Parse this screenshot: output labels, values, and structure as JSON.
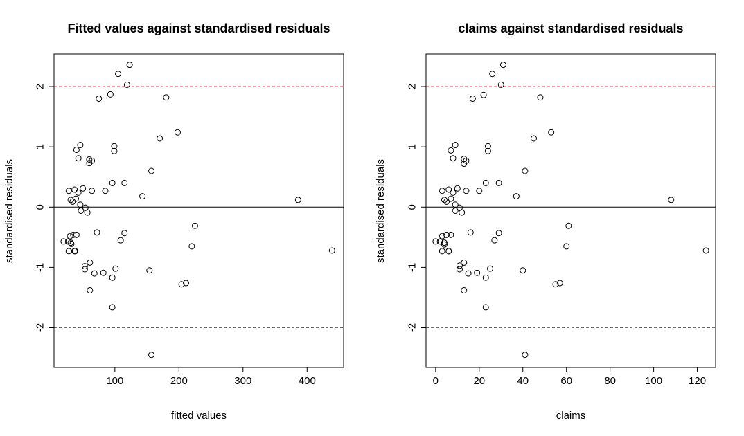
{
  "chart_data": [
    {
      "type": "scatter",
      "title": "Fitted values against standardised residuals",
      "xlabel": "fitted values",
      "ylabel": "standardised residuals",
      "xlim": [
        5,
        457
      ],
      "ylim": [
        -2.66,
        2.54
      ],
      "xticks": [
        100,
        200,
        300,
        400
      ],
      "yticks": [
        -2,
        -1,
        0,
        1,
        2
      ],
      "hlines": [
        {
          "y": 2,
          "color": "#e8313b",
          "style": "dashed"
        },
        {
          "y": 0,
          "color": "#000000",
          "style": "solid"
        },
        {
          "y": -2,
          "color": "#e8313b",
          "style": "dashed"
        }
      ],
      "points": [
        {
          "x": 20,
          "y": -0.57
        },
        {
          "x": 27,
          "y": -0.57
        },
        {
          "x": 28,
          "y": 0.27
        },
        {
          "x": 28,
          "y": -0.73
        },
        {
          "x": 30,
          "y": -0.48
        },
        {
          "x": 31,
          "y": 0.12
        },
        {
          "x": 31,
          "y": -0.59
        },
        {
          "x": 32,
          "y": -0.61
        },
        {
          "x": 34,
          "y": 0.09
        },
        {
          "x": 35,
          "y": -0.46
        },
        {
          "x": 37,
          "y": 0.29
        },
        {
          "x": 37,
          "y": -0.73
        },
        {
          "x": 38,
          "y": -0.73
        },
        {
          "x": 39,
          "y": 0.14
        },
        {
          "x": 40,
          "y": 0.95
        },
        {
          "x": 40,
          "y": -0.46
        },
        {
          "x": 43,
          "y": 0.81
        },
        {
          "x": 43,
          "y": 0.24
        },
        {
          "x": 46,
          "y": 1.03
        },
        {
          "x": 46,
          "y": 0.04
        },
        {
          "x": 47,
          "y": -0.06
        },
        {
          "x": 50,
          "y": 0.31
        },
        {
          "x": 53,
          "y": -0.98
        },
        {
          "x": 53,
          "y": -1.03
        },
        {
          "x": 54,
          "y": -0.01
        },
        {
          "x": 57,
          "y": -0.09
        },
        {
          "x": 60,
          "y": 0.79
        },
        {
          "x": 60,
          "y": 0.73
        },
        {
          "x": 61,
          "y": -0.92
        },
        {
          "x": 61,
          "y": -1.38
        },
        {
          "x": 64,
          "y": 0.77
        },
        {
          "x": 64,
          "y": 0.27
        },
        {
          "x": 68,
          "y": -1.1
        },
        {
          "x": 72,
          "y": -0.42
        },
        {
          "x": 75,
          "y": 1.8
        },
        {
          "x": 82,
          "y": -1.09
        },
        {
          "x": 85,
          "y": 0.27
        },
        {
          "x": 93,
          "y": 1.87
        },
        {
          "x": 96,
          "y": 0.4
        },
        {
          "x": 96,
          "y": -1.17
        },
        {
          "x": 96,
          "y": -1.66
        },
        {
          "x": 99,
          "y": 1.01
        },
        {
          "x": 99,
          "y": 0.93
        },
        {
          "x": 101,
          "y": -1.02
        },
        {
          "x": 105,
          "y": 2.21
        },
        {
          "x": 109,
          "y": -0.55
        },
        {
          "x": 115,
          "y": 0.4
        },
        {
          "x": 115,
          "y": -0.43
        },
        {
          "x": 119,
          "y": 2.03
        },
        {
          "x": 123,
          "y": 2.36
        },
        {
          "x": 143,
          "y": 0.18
        },
        {
          "x": 154,
          "y": -1.05
        },
        {
          "x": 157,
          "y": 0.6
        },
        {
          "x": 157,
          "y": -2.45
        },
        {
          "x": 170,
          "y": 1.14
        },
        {
          "x": 180,
          "y": 1.82
        },
        {
          "x": 198,
          "y": 1.24
        },
        {
          "x": 204,
          "y": -1.28
        },
        {
          "x": 211,
          "y": -1.26
        },
        {
          "x": 220,
          "y": -0.65
        },
        {
          "x": 225,
          "y": -0.31
        },
        {
          "x": 386,
          "y": 0.12
        },
        {
          "x": 439,
          "y": -0.72
        }
      ]
    },
    {
      "type": "scatter",
      "title": "claims against standardised residuals",
      "xlabel": "claims",
      "ylabel": "standardised residuals",
      "xlim": [
        -4.4,
        128.4
      ],
      "ylim": [
        -2.66,
        2.54
      ],
      "xticks": [
        0,
        20,
        40,
        60,
        80,
        100,
        120
      ],
      "yticks": [
        -2,
        -1,
        0,
        1,
        2
      ],
      "hlines": [
        {
          "y": 2,
          "color": "#e8313b",
          "style": "dashed"
        },
        {
          "y": 0,
          "color": "#000000",
          "style": "solid"
        },
        {
          "y": -2,
          "color": "#e8313b",
          "style": "dashed"
        }
      ],
      "points": [
        {
          "x": 0,
          "y": -0.57
        },
        {
          "x": 2,
          "y": -0.57
        },
        {
          "x": 3,
          "y": 0.27
        },
        {
          "x": 3,
          "y": -0.73
        },
        {
          "x": 3,
          "y": -0.48
        },
        {
          "x": 4,
          "y": 0.12
        },
        {
          "x": 4,
          "y": -0.59
        },
        {
          "x": 4,
          "y": -0.62
        },
        {
          "x": 5,
          "y": 0.09
        },
        {
          "x": 5,
          "y": -0.46
        },
        {
          "x": 6,
          "y": 0.29
        },
        {
          "x": 6,
          "y": -0.73
        },
        {
          "x": 6,
          "y": -0.73
        },
        {
          "x": 7,
          "y": 0.14
        },
        {
          "x": 7,
          "y": 0.94
        },
        {
          "x": 7,
          "y": -0.46
        },
        {
          "x": 8,
          "y": 0.81
        },
        {
          "x": 8,
          "y": 0.24
        },
        {
          "x": 9,
          "y": 1.03
        },
        {
          "x": 9,
          "y": 0.04
        },
        {
          "x": 9,
          "y": -0.06
        },
        {
          "x": 10,
          "y": 0.31
        },
        {
          "x": 11,
          "y": -0.97
        },
        {
          "x": 11,
          "y": -1.03
        },
        {
          "x": 11,
          "y": -0.01
        },
        {
          "x": 12,
          "y": -0.09
        },
        {
          "x": 13,
          "y": 0.8
        },
        {
          "x": 13,
          "y": 0.72
        },
        {
          "x": 13,
          "y": -0.92
        },
        {
          "x": 13,
          "y": -1.38
        },
        {
          "x": 14,
          "y": 0.77
        },
        {
          "x": 14,
          "y": 0.27
        },
        {
          "x": 15,
          "y": -1.1
        },
        {
          "x": 16,
          "y": -0.42
        },
        {
          "x": 17,
          "y": 1.8
        },
        {
          "x": 19,
          "y": -1.09
        },
        {
          "x": 20,
          "y": 0.27
        },
        {
          "x": 22,
          "y": 1.86
        },
        {
          "x": 23,
          "y": 0.4
        },
        {
          "x": 23,
          "y": -1.17
        },
        {
          "x": 23,
          "y": -1.66
        },
        {
          "x": 24,
          "y": 1.01
        },
        {
          "x": 24,
          "y": 0.93
        },
        {
          "x": 25,
          "y": -1.02
        },
        {
          "x": 26,
          "y": 2.21
        },
        {
          "x": 27,
          "y": -0.55
        },
        {
          "x": 29,
          "y": 0.4
        },
        {
          "x": 29,
          "y": -0.43
        },
        {
          "x": 30,
          "y": 2.03
        },
        {
          "x": 31,
          "y": 2.36
        },
        {
          "x": 37,
          "y": 0.18
        },
        {
          "x": 40,
          "y": -1.05
        },
        {
          "x": 41,
          "y": 0.6
        },
        {
          "x": 41,
          "y": -2.45
        },
        {
          "x": 45,
          "y": 1.14
        },
        {
          "x": 48,
          "y": 1.82
        },
        {
          "x": 53,
          "y": 1.24
        },
        {
          "x": 55,
          "y": -1.28
        },
        {
          "x": 57,
          "y": -1.26
        },
        {
          "x": 60,
          "y": -0.65
        },
        {
          "x": 61,
          "y": -0.31
        },
        {
          "x": 108,
          "y": 0.12
        },
        {
          "x": 124,
          "y": -0.72
        }
      ]
    }
  ]
}
